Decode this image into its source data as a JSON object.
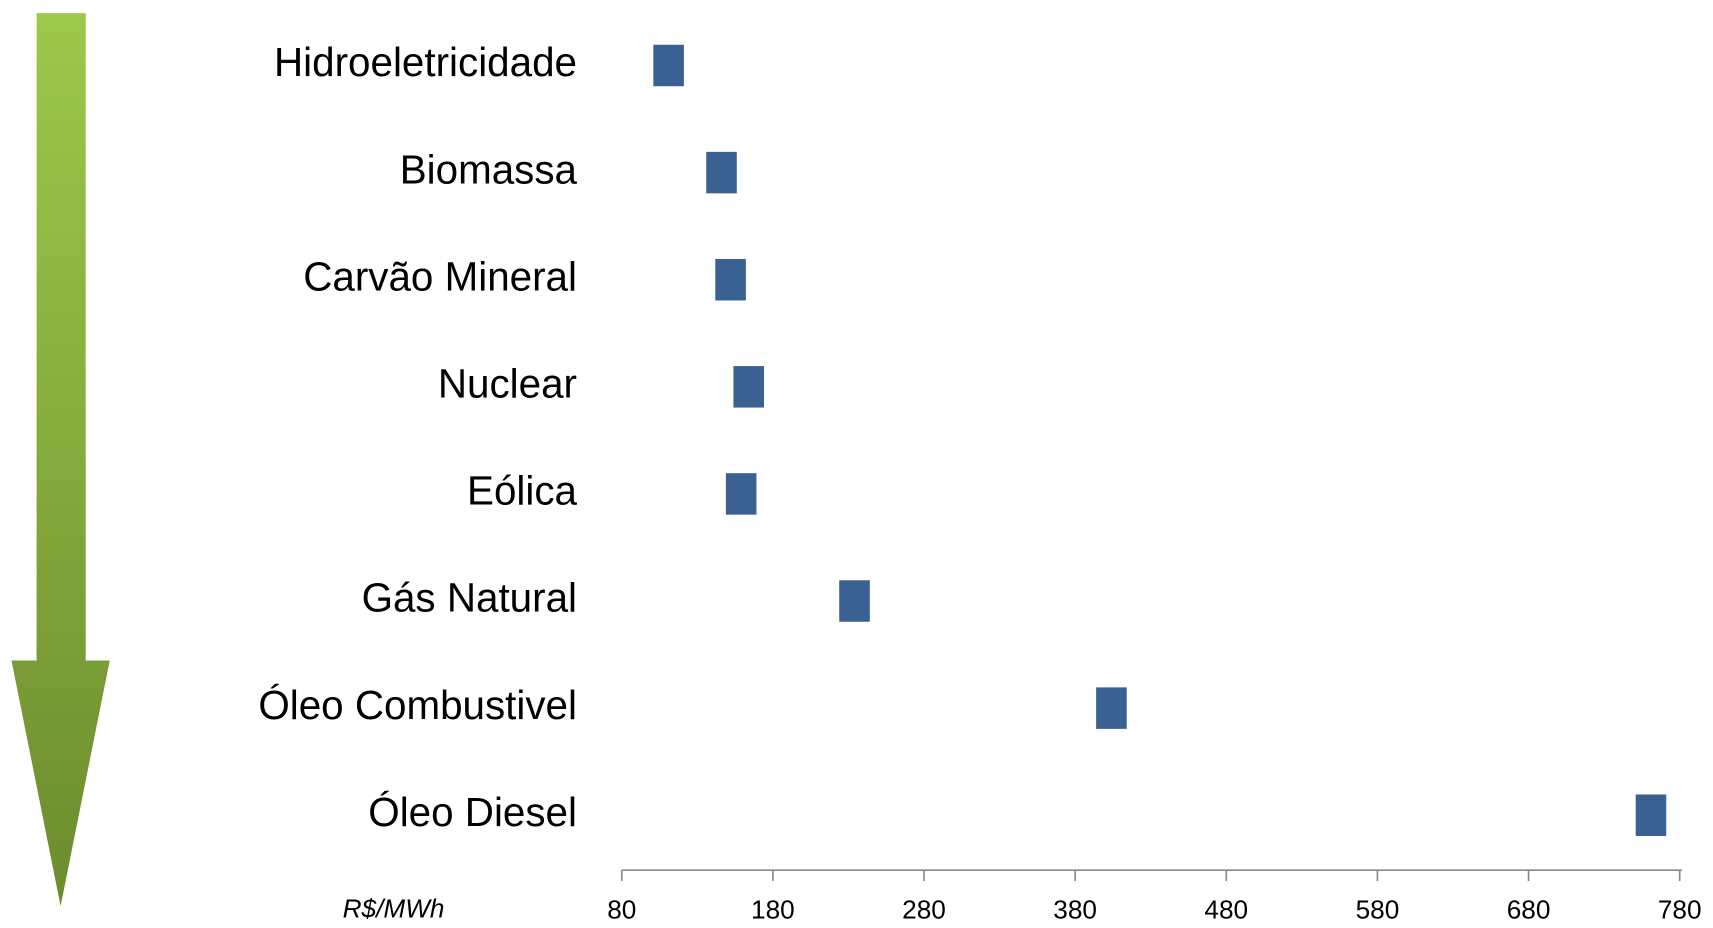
{
  "chart_data": {
    "type": "dot",
    "categories": [
      "Hidroeletricidade",
      "Biomassa",
      "Carvão Mineral",
      "Nuclear",
      "Eólica",
      "Gás Natural",
      "Óleo Combustivel",
      "Óleo Diesel"
    ],
    "values": [
      111,
      146,
      152,
      164,
      159,
      234,
      404,
      761
    ],
    "color": "#3a6191",
    "x_label": "R$/MWh",
    "xlim": [
      80,
      780
    ],
    "xticks": [
      80,
      180,
      280,
      380,
      480,
      580,
      680,
      780
    ]
  }
}
